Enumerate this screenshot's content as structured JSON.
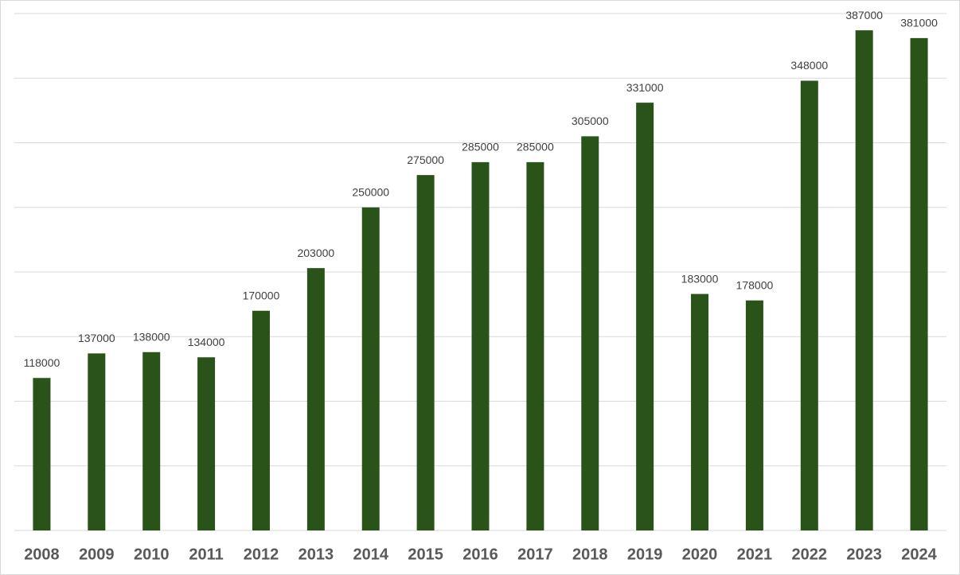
{
  "chart_data": {
    "type": "bar",
    "categories": [
      "2008",
      "2009",
      "2010",
      "2011",
      "2012",
      "2013",
      "2014",
      "2015",
      "2016",
      "2017",
      "2018",
      "2019",
      "2020",
      "2021",
      "2022",
      "2023",
      "2024"
    ],
    "values": [
      118000,
      137000,
      138000,
      134000,
      170000,
      203000,
      250000,
      275000,
      285000,
      285000,
      305000,
      331000,
      183000,
      178000,
      348000,
      387000,
      381000
    ],
    "color": "#2a5319",
    "ylim": [
      0,
      400000
    ],
    "yticks": [
      0,
      50000,
      100000,
      150000,
      200000,
      250000,
      300000,
      350000,
      400000
    ],
    "grid": true
  }
}
